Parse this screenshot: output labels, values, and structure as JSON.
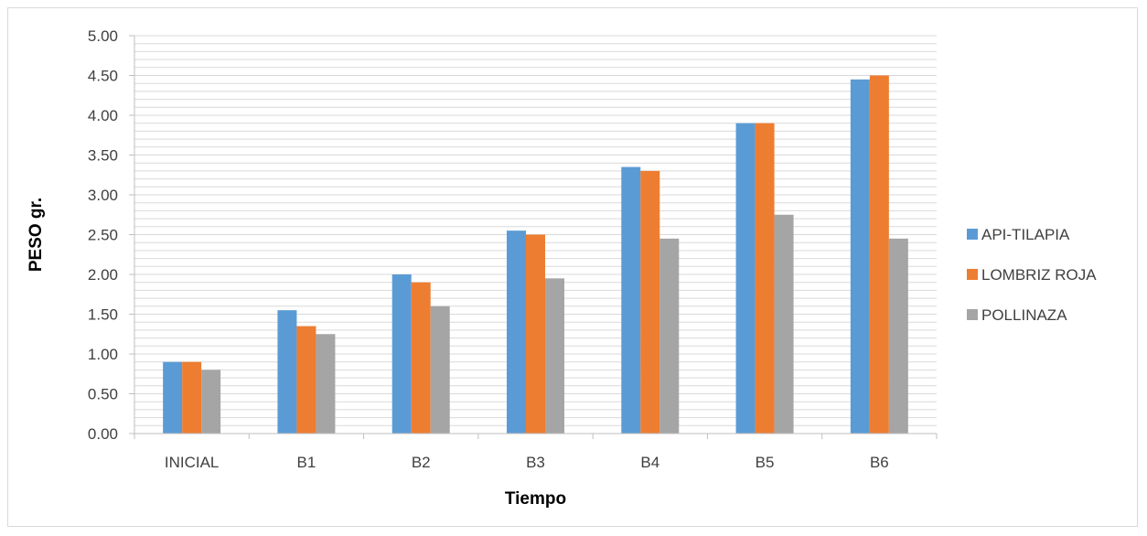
{
  "chart_data": {
    "type": "bar",
    "title": "",
    "xlabel": "Tiempo",
    "ylabel": "PESO gr.",
    "categories": [
      "INICIAL",
      "B1",
      "B2",
      "B3",
      "B4",
      "B5",
      "B6"
    ],
    "series": [
      {
        "name": "API-TILAPIA",
        "color": "#5b9bd5",
        "values": [
          0.9,
          1.55,
          2.0,
          2.55,
          3.35,
          3.9,
          4.45
        ]
      },
      {
        "name": "LOMBRIZ ROJA",
        "color": "#ed7d31",
        "values": [
          0.9,
          1.35,
          1.9,
          2.5,
          3.3,
          3.9,
          4.5
        ]
      },
      {
        "name": "POLLINAZA",
        "color": "#a5a5a5",
        "values": [
          0.8,
          1.25,
          1.6,
          1.95,
          2.45,
          2.75,
          2.45
        ]
      }
    ],
    "ylim": [
      0,
      5
    ],
    "y_ticks": [
      "0.00",
      "0.50",
      "1.00",
      "1.50",
      "2.00",
      "2.50",
      "3.00",
      "3.50",
      "4.00",
      "4.50",
      "5.00"
    ],
    "grid": true,
    "legend_position": "right"
  }
}
